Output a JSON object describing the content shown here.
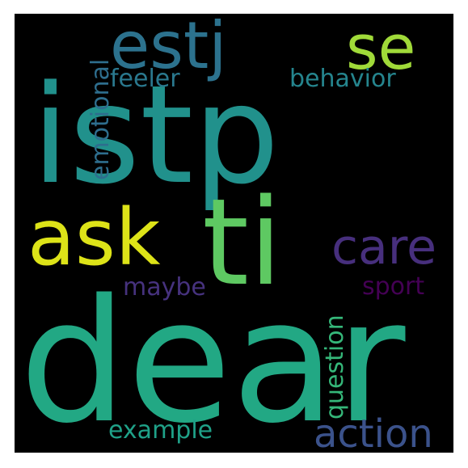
{
  "words": [
    {
      "key": "istp",
      "text": "istp",
      "color": "#21918c"
    },
    {
      "key": "dear",
      "text": "dear",
      "color": "#22a884"
    },
    {
      "key": "ti",
      "text": "ti",
      "color": "#5ec962"
    },
    {
      "key": "ask",
      "text": "ask",
      "color": "#dde318"
    },
    {
      "key": "estj",
      "text": "estj",
      "color": "#2c728e"
    },
    {
      "key": "se",
      "text": "se",
      "color": "#a0da39"
    },
    {
      "key": "care",
      "text": "care",
      "color": "#472f7d"
    },
    {
      "key": "action",
      "text": "action",
      "color": "#3b528b"
    },
    {
      "key": "behavior",
      "text": "behavior",
      "color": "#25858e"
    },
    {
      "key": "feeler",
      "text": "feeler",
      "color": "#2a788e"
    },
    {
      "key": "emotional",
      "text": "emotional",
      "color": "#2e6e8e"
    },
    {
      "key": "maybe",
      "text": "maybe",
      "color": "#46327e"
    },
    {
      "key": "sport",
      "text": "sport",
      "color": "#440154"
    },
    {
      "key": "question",
      "text": "question",
      "color": "#35b779"
    },
    {
      "key": "example",
      "text": "example",
      "color": "#1fa188"
    }
  ]
}
